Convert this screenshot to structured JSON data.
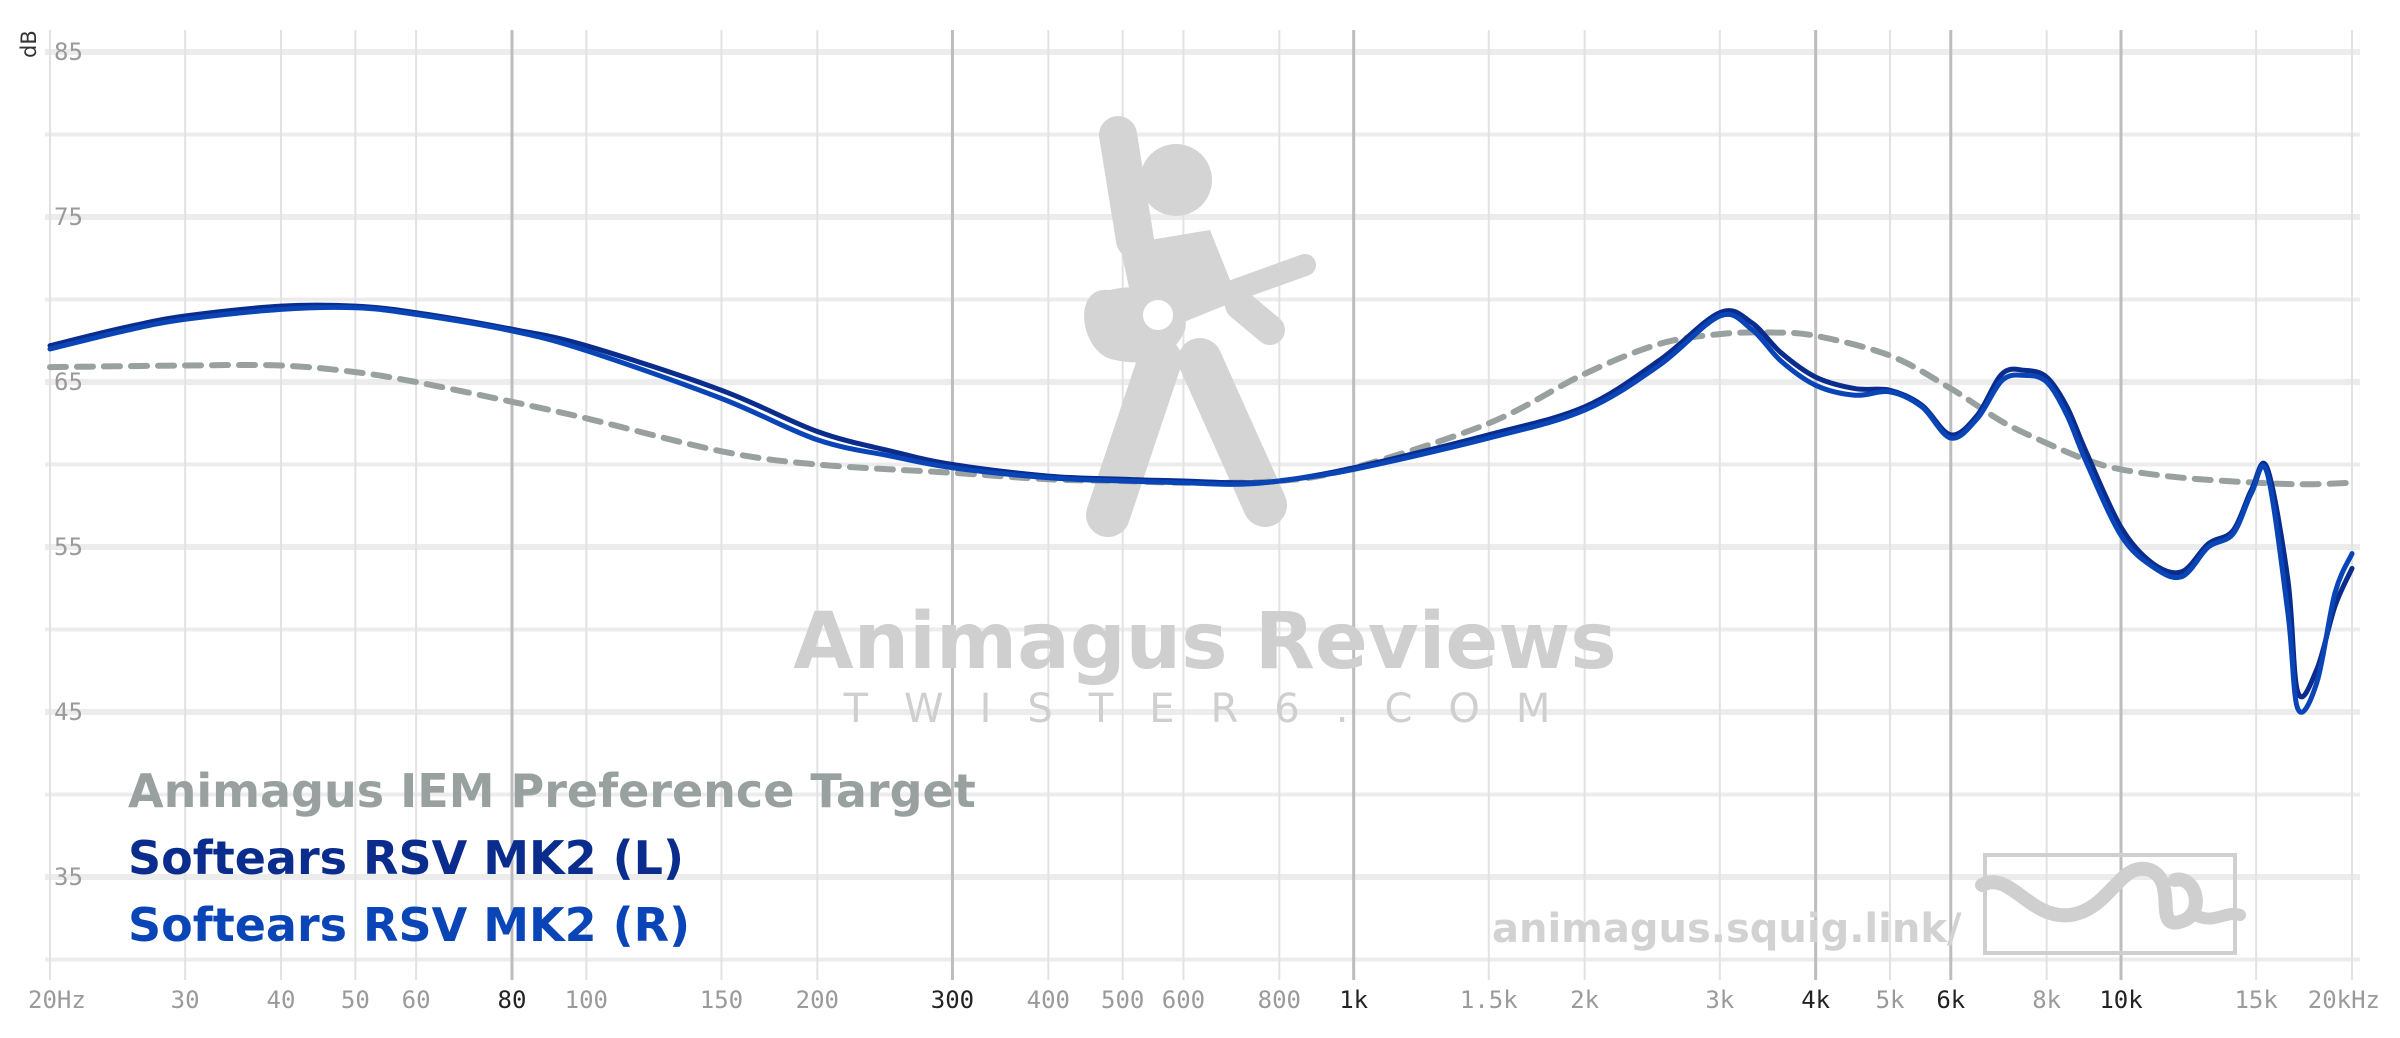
{
  "chart_data": {
    "type": "line",
    "title": "",
    "xlabel": "",
    "ylabel": "dB",
    "x_scale": "log",
    "xlim": [
      20,
      20000
    ],
    "ylim": [
      30,
      85
    ],
    "x_ticks": [
      {
        "value": 20,
        "label": "20Hz",
        "major": false
      },
      {
        "value": 30,
        "label": "30",
        "major": false
      },
      {
        "value": 40,
        "label": "40",
        "major": false
      },
      {
        "value": 50,
        "label": "50",
        "major": false
      },
      {
        "value": 60,
        "label": "60",
        "major": false
      },
      {
        "value": 80,
        "label": "80",
        "major": true
      },
      {
        "value": 100,
        "label": "100",
        "major": false
      },
      {
        "value": 150,
        "label": "150",
        "major": false
      },
      {
        "value": 200,
        "label": "200",
        "major": false
      },
      {
        "value": 300,
        "label": "300",
        "major": true
      },
      {
        "value": 400,
        "label": "400",
        "major": false
      },
      {
        "value": 500,
        "label": "500",
        "major": false
      },
      {
        "value": 600,
        "label": "600",
        "major": false
      },
      {
        "value": 800,
        "label": "800",
        "major": false
      },
      {
        "value": 1000,
        "label": "1k",
        "major": true
      },
      {
        "value": 1500,
        "label": "1.5k",
        "major": false
      },
      {
        "value": 2000,
        "label": "2k",
        "major": false
      },
      {
        "value": 3000,
        "label": "3k",
        "major": false
      },
      {
        "value": 4000,
        "label": "4k",
        "major": true
      },
      {
        "value": 5000,
        "label": "5k",
        "major": false
      },
      {
        "value": 6000,
        "label": "6k",
        "major": true
      },
      {
        "value": 8000,
        "label": "8k",
        "major": false
      },
      {
        "value": 10000,
        "label": "10k",
        "major": true
      },
      {
        "value": 15000,
        "label": "15k",
        "major": false
      },
      {
        "value": 20000,
        "label": "20kHz",
        "major": false
      }
    ],
    "y_ticks": [
      {
        "value": 85,
        "label": "85"
      },
      {
        "value": 75,
        "label": "75"
      },
      {
        "value": 65,
        "label": "65"
      },
      {
        "value": 55,
        "label": "55"
      },
      {
        "value": 45,
        "label": "45"
      },
      {
        "value": 35,
        "label": "35"
      }
    ],
    "grid": true,
    "legend_position": "bottom-left",
    "series": [
      {
        "name": "Animagus IEM Preference Target",
        "color": "#98a19f",
        "dashed": true,
        "x": [
          20,
          30,
          40,
          50,
          60,
          80,
          100,
          150,
          200,
          300,
          400,
          500,
          600,
          800,
          1000,
          1500,
          2000,
          2500,
          3000,
          3500,
          4000,
          5000,
          6000,
          7000,
          8000,
          9000,
          10000,
          12000,
          15000,
          17500,
          20000
        ],
        "y": [
          65.9,
          66.0,
          66.0,
          65.6,
          65.0,
          63.8,
          62.8,
          60.8,
          60.0,
          59.5,
          59.1,
          59.0,
          58.9,
          59.0,
          59.8,
          62.5,
          65.5,
          67.3,
          67.9,
          68.0,
          67.8,
          66.6,
          64.6,
          62.6,
          61.3,
          60.3,
          59.7,
          59.2,
          58.9,
          58.8,
          58.9
        ]
      },
      {
        "name": "Softears RSV MK2 (L)",
        "color": "#0a2c8c",
        "dashed": false,
        "x": [
          20,
          25,
          30,
          40,
          50,
          60,
          80,
          100,
          150,
          200,
          250,
          300,
          400,
          500,
          600,
          700,
          800,
          1000,
          1500,
          2000,
          2500,
          3000,
          3300,
          3600,
          4000,
          4500,
          5000,
          5500,
          6000,
          6500,
          7000,
          7500,
          8000,
          8500,
          9000,
          10000,
          11000,
          12000,
          13000,
          14000,
          14800,
          15500,
          16500,
          17000,
          18000,
          19000,
          20000
        ],
        "y": [
          67.2,
          68.3,
          69.0,
          69.6,
          69.6,
          69.2,
          68.2,
          67.2,
          64.5,
          62.0,
          60.8,
          60.0,
          59.3,
          59.1,
          59.0,
          58.9,
          59.0,
          59.8,
          61.8,
          63.5,
          66.3,
          69.2,
          68.6,
          66.8,
          65.3,
          64.6,
          64.5,
          63.6,
          61.8,
          63.0,
          65.5,
          65.7,
          65.3,
          63.5,
          60.8,
          56.2,
          54.0,
          53.5,
          55.2,
          56.0,
          58.5,
          59.8,
          53.0,
          46.2,
          47.6,
          51.4,
          53.7
        ]
      },
      {
        "name": "Softears RSV MK2 (R)",
        "color": "#0a45b8",
        "dashed": false,
        "x": [
          20,
          25,
          30,
          40,
          50,
          60,
          80,
          100,
          150,
          200,
          250,
          300,
          400,
          500,
          600,
          700,
          800,
          1000,
          1500,
          2000,
          2500,
          3000,
          3300,
          3600,
          4000,
          4500,
          5000,
          5500,
          6000,
          6500,
          7000,
          7500,
          8000,
          8500,
          9000,
          10000,
          11000,
          12000,
          13000,
          14000,
          14800,
          15500,
          16500,
          17000,
          18000,
          19000,
          20000
        ],
        "y": [
          67.0,
          68.1,
          68.8,
          69.4,
          69.5,
          69.1,
          68.1,
          66.9,
          64.0,
          61.5,
          60.5,
          59.8,
          59.2,
          59.0,
          58.9,
          58.8,
          59.0,
          59.7,
          61.6,
          63.3,
          66.0,
          69.0,
          68.2,
          66.3,
          64.8,
          64.2,
          64.4,
          63.5,
          61.6,
          62.8,
          65.1,
          65.4,
          65.0,
          63.0,
          60.2,
          55.7,
          53.8,
          53.2,
          55.0,
          55.8,
          58.3,
          59.5,
          51.0,
          45.2,
          46.8,
          52.2,
          54.6
        ]
      }
    ]
  },
  "watermark": {
    "title": "Animagus Reviews",
    "subtitle": "TWISTER6.COM",
    "url": "animagus.squig.link/",
    "logo_icon": "guitarist-icon",
    "badge_icon": "squiggle-logo-icon"
  }
}
